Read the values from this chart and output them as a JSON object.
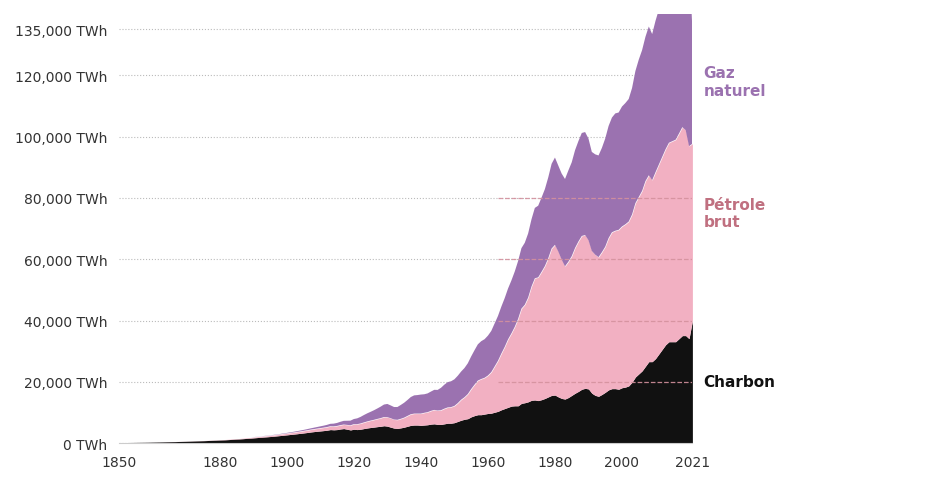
{
  "bg_color": "#ffffff",
  "colors": {
    "coal": "#111111",
    "oil": "#f2b0c2",
    "gas": "#9b72b0"
  },
  "labels": {
    "coal": "Charbon",
    "oil": "Pétrole\nbrut",
    "gas": "Gaz\nnaturel"
  },
  "yticks": [
    0,
    20000,
    40000,
    60000,
    80000,
    100000,
    120000,
    135000
  ],
  "ytick_labels": [
    "0 TWh",
    "20,000 TWh",
    "40,000 TWh",
    "60,000 TWh",
    "80,000 TWh",
    "100,000 TWh",
    "120,000 TWh",
    "135,000 TWh"
  ],
  "xticks": [
    1850,
    1880,
    1900,
    1920,
    1940,
    1960,
    1980,
    2000,
    2021
  ],
  "years": [
    1850,
    1851,
    1852,
    1853,
    1854,
    1855,
    1856,
    1857,
    1858,
    1859,
    1860,
    1861,
    1862,
    1863,
    1864,
    1865,
    1866,
    1867,
    1868,
    1869,
    1870,
    1871,
    1872,
    1873,
    1874,
    1875,
    1876,
    1877,
    1878,
    1879,
    1880,
    1881,
    1882,
    1883,
    1884,
    1885,
    1886,
    1887,
    1888,
    1889,
    1890,
    1891,
    1892,
    1893,
    1894,
    1895,
    1896,
    1897,
    1898,
    1899,
    1900,
    1901,
    1902,
    1903,
    1904,
    1905,
    1906,
    1907,
    1908,
    1909,
    1910,
    1911,
    1912,
    1913,
    1914,
    1915,
    1916,
    1917,
    1918,
    1919,
    1920,
    1921,
    1922,
    1923,
    1924,
    1925,
    1926,
    1927,
    1928,
    1929,
    1930,
    1931,
    1932,
    1933,
    1934,
    1935,
    1936,
    1937,
    1938,
    1939,
    1940,
    1941,
    1942,
    1943,
    1944,
    1945,
    1946,
    1947,
    1948,
    1949,
    1950,
    1951,
    1952,
    1953,
    1954,
    1955,
    1956,
    1957,
    1958,
    1959,
    1960,
    1961,
    1962,
    1963,
    1964,
    1965,
    1966,
    1967,
    1968,
    1969,
    1970,
    1971,
    1972,
    1973,
    1974,
    1975,
    1976,
    1977,
    1978,
    1979,
    1980,
    1981,
    1982,
    1983,
    1984,
    1985,
    1986,
    1987,
    1988,
    1989,
    1990,
    1991,
    1992,
    1993,
    1994,
    1995,
    1996,
    1997,
    1998,
    1999,
    2000,
    2001,
    2002,
    2003,
    2004,
    2005,
    2006,
    2007,
    2008,
    2009,
    2010,
    2011,
    2012,
    2013,
    2014,
    2015,
    2016,
    2017,
    2018,
    2019,
    2020,
    2021
  ],
  "coal": [
    200,
    210,
    220,
    235,
    250,
    265,
    280,
    295,
    310,
    330,
    355,
    375,
    400,
    425,
    455,
    480,
    505,
    535,
    565,
    595,
    625,
    660,
    700,
    740,
    780,
    820,
    860,
    900,
    940,
    980,
    1030,
    1080,
    1140,
    1200,
    1270,
    1340,
    1410,
    1480,
    1560,
    1640,
    1730,
    1820,
    1910,
    2000,
    2080,
    2170,
    2270,
    2380,
    2490,
    2610,
    2720,
    2840,
    2960,
    3080,
    3210,
    3340,
    3480,
    3640,
    3770,
    3890,
    4000,
    4110,
    4240,
    4440,
    4370,
    4440,
    4640,
    4770,
    4550,
    4330,
    4560,
    4440,
    4560,
    4770,
    4960,
    5120,
    5250,
    5400,
    5520,
    5700,
    5560,
    5220,
    4920,
    4820,
    5000,
    5220,
    5520,
    5820,
    5920,
    5920,
    5820,
    5920,
    6020,
    6220,
    6320,
    6120,
    6120,
    6320,
    6520,
    6520,
    6700,
    7100,
    7500,
    7800,
    8000,
    8600,
    9000,
    9300,
    9300,
    9500,
    9700,
    9800,
    10100,
    10400,
    10900,
    11300,
    11700,
    12100,
    12200,
    12200,
    13000,
    13200,
    13500,
    14000,
    14100,
    13900,
    14200,
    14600,
    15100,
    15600,
    15700,
    15100,
    14600,
    14400,
    14900,
    15600,
    16300,
    16900,
    17600,
    17900,
    17700,
    16300,
    15600,
    15300,
    15900,
    16600,
    17400,
    17800,
    17800,
    17600,
    18100,
    18300,
    18700,
    19900,
    21600,
    22600,
    23600,
    25100,
    26600,
    26600,
    27600,
    29100,
    30600,
    32100,
    33100,
    33100,
    33100,
    34100,
    35100,
    35100,
    34100,
    40000
  ],
  "oil": [
    0,
    0,
    0,
    0,
    0,
    5,
    5,
    5,
    10,
    10,
    10,
    15,
    15,
    15,
    20,
    20,
    25,
    25,
    30,
    30,
    35,
    35,
    40,
    40,
    45,
    50,
    55,
    60,
    65,
    70,
    80,
    90,
    100,
    110,
    120,
    130,
    145,
    160,
    175,
    195,
    215,
    240,
    260,
    280,
    300,
    325,
    350,
    380,
    410,
    445,
    480,
    515,
    550,
    590,
    635,
    685,
    730,
    775,
    820,
    875,
    930,
    980,
    1035,
    1090,
    1130,
    1195,
    1260,
    1320,
    1425,
    1525,
    1640,
    1770,
    1880,
    2010,
    2140,
    2260,
    2385,
    2520,
    2665,
    2830,
    2940,
    2930,
    2800,
    2810,
    2960,
    3120,
    3380,
    3630,
    3730,
    3740,
    3840,
    4000,
    4100,
    4330,
    4540,
    4540,
    4640,
    4950,
    5150,
    5260,
    5470,
    5970,
    6680,
    7190,
    8030,
    9060,
    10100,
    11130,
    11640,
    11840,
    12380,
    13380,
    14930,
    16480,
    18330,
    20100,
    22160,
    23700,
    25750,
    28330,
    30900,
    31950,
    34000,
    37100,
    39700,
    40200,
    41700,
    43200,
    45250,
    47900,
    49000,
    47400,
    45300,
    43300,
    44300,
    45400,
    47400,
    48900,
    50000,
    50000,
    48500,
    46400,
    45900,
    45400,
    46400,
    47500,
    49500,
    51000,
    51500,
    52000,
    52600,
    53100,
    53600,
    54700,
    56700,
    57700,
    58700,
    60400,
    60800,
    59200,
    60800,
    61800,
    62800,
    63800,
    64900,
    65400,
    65900,
    66900,
    68000,
    67000,
    62800,
    57700
  ],
  "gas": [
    0,
    0,
    0,
    0,
    0,
    0,
    0,
    0,
    0,
    0,
    0,
    0,
    0,
    0,
    0,
    0,
    0,
    0,
    0,
    0,
    0,
    0,
    0,
    0,
    0,
    0,
    0,
    0,
    0,
    0,
    0,
    0,
    0,
    0,
    0,
    0,
    0,
    0,
    0,
    0,
    30,
    35,
    40,
    50,
    60,
    70,
    80,
    95,
    110,
    130,
    155,
    180,
    210,
    240,
    275,
    310,
    355,
    400,
    450,
    505,
    565,
    635,
    710,
    795,
    885,
    975,
    1085,
    1205,
    1345,
    1500,
    1680,
    1895,
    2135,
    2400,
    2640,
    2850,
    3110,
    3400,
    3740,
    4080,
    4300,
    4170,
    4080,
    4170,
    4510,
    4850,
    5190,
    5610,
    5950,
    6040,
    6210,
    6040,
    6120,
    6290,
    6550,
    6720,
    7310,
    7820,
    8250,
    8420,
    8670,
    8920,
    9180,
    9520,
    10030,
    10630,
    11220,
    11820,
    12330,
    12580,
    13000,
    13430,
    14030,
    14620,
    15300,
    15900,
    16580,
    17260,
    18020,
    18880,
    19720,
    20230,
    20910,
    21930,
    22950,
    23370,
    24210,
    25090,
    26350,
    27630,
    28480,
    28050,
    28050,
    28480,
    29760,
    30610,
    31890,
    32740,
    33590,
    33590,
    33160,
    32310,
    32730,
    33160,
    34010,
    35290,
    36570,
    37420,
    38270,
    38270,
    39120,
    39540,
    39970,
    41250,
    43100,
    44800,
    45930,
    47080,
    48520,
    47660,
    49380,
    50520,
    51810,
    53100,
    54390,
    56130,
    57000,
    58290,
    59940,
    60780,
    61620,
    37300
  ]
}
